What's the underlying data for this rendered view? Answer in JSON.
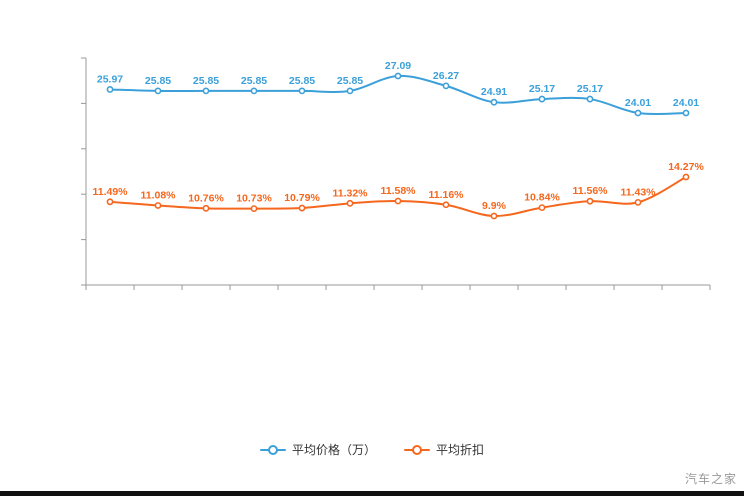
{
  "watermark": "汽车之家",
  "legend": {
    "items": [
      {
        "label": "平均价格（万）",
        "color": "#3ba0d9"
      },
      {
        "label": "平均折扣",
        "color": "#f6671e"
      }
    ]
  },
  "chart_data": {
    "type": "line",
    "title": "",
    "xlabel": "",
    "ylabel": "",
    "grid": false,
    "smooth": true,
    "legend_position": "bottom",
    "x_tick_labels": [],
    "series": [
      {
        "name": "平均价格（万）",
        "color": "#3ba0d9",
        "values": [
          25.97,
          25.85,
          25.85,
          25.85,
          25.85,
          25.85,
          27.09,
          26.27,
          24.91,
          25.17,
          25.17,
          24.01,
          24.01
        ],
        "labels": [
          "25.97",
          "25.85",
          "25.85",
          "25.85",
          "25.85",
          "25.85",
          "27.09",
          "26.27",
          "24.91",
          "25.17",
          "25.17",
          "24.01",
          "24.01"
        ]
      },
      {
        "name": "平均折扣",
        "color": "#f6671e",
        "values": [
          11.49,
          11.08,
          10.76,
          10.73,
          10.79,
          11.32,
          11.58,
          11.16,
          9.9,
          10.84,
          11.56,
          11.43,
          14.27
        ],
        "labels": [
          "11.49%",
          "11.08%",
          "10.76%",
          "10.73%",
          "10.79%",
          "11.32%",
          "11.58%",
          "11.16%",
          "9.9%",
          "10.84%",
          "11.56%",
          "11.43%",
          "14.27%"
        ]
      }
    ]
  }
}
